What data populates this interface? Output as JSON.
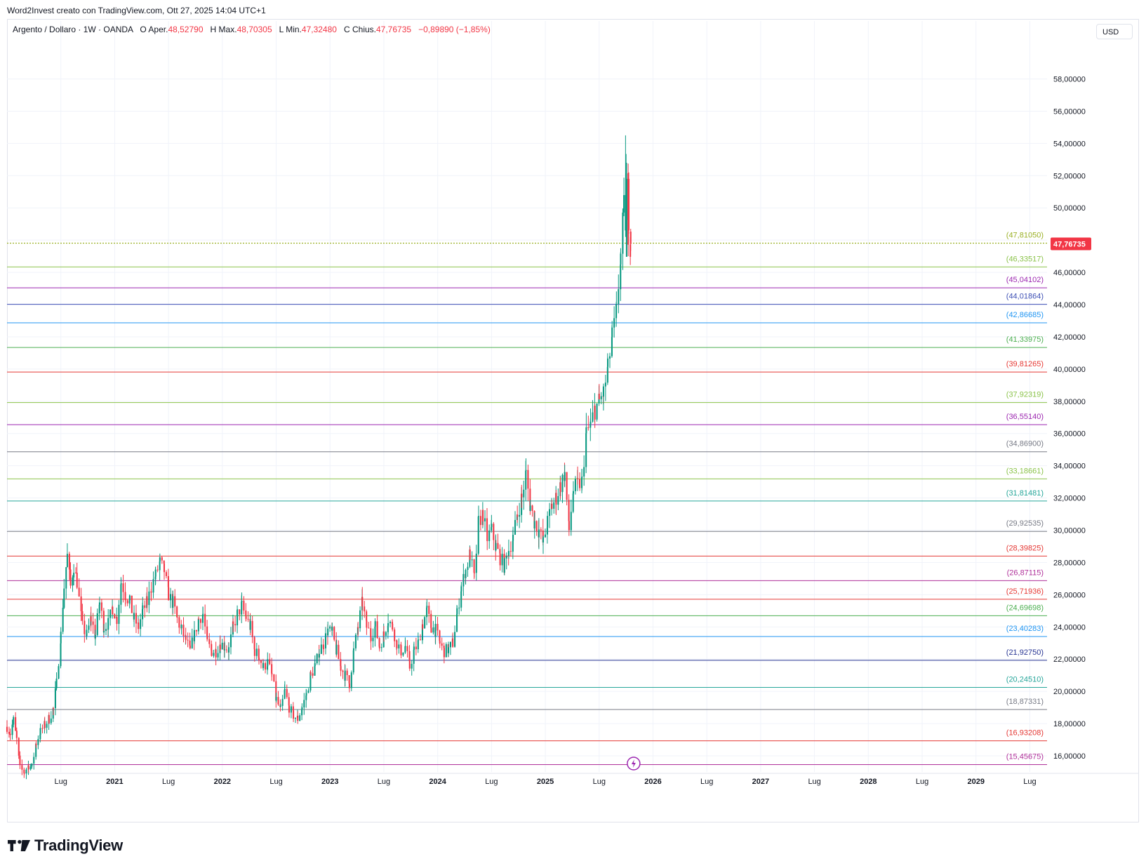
{
  "caption": "Word2Invest creato con TradingView.com, Ott 27, 2025 14:04 UTC+1",
  "legend": {
    "symbol": "Argento / Dollaro · 1W · OANDA",
    "o_label": "O",
    "o_key": "Aper.",
    "o_val": "48,52790",
    "h_label": "H",
    "h_key": "Max.",
    "h_val": "48,70305",
    "l_label": "L",
    "l_key": "Min.",
    "l_val": "47,32480",
    "c_label": "C",
    "c_key": "Chius.",
    "c_val": "47,76735",
    "change": "−0,89890 (−1,85%)"
  },
  "currency": "USD",
  "brand": "TradingView",
  "event_icon": "lightning-icon",
  "colors": {
    "up": "#089981",
    "down": "#f23645",
    "grid": "#f0f3fa",
    "price_tag": "#f23645"
  },
  "chart_data": {
    "type": "candlestick",
    "symbol": "XAGUSD",
    "timeframe": "1W",
    "ylim": [
      15.0,
      60.2
    ],
    "y_ticks": [
      {
        "value": 16,
        "label": "16,00000"
      },
      {
        "value": 18,
        "label": "18,00000"
      },
      {
        "value": 20,
        "label": "20,00000"
      },
      {
        "value": 22,
        "label": "22,00000"
      },
      {
        "value": 24,
        "label": "24,00000"
      },
      {
        "value": 26,
        "label": "26,00000"
      },
      {
        "value": 28,
        "label": "28,00000"
      },
      {
        "value": 30,
        "label": "30,00000"
      },
      {
        "value": 32,
        "label": "32,00000"
      },
      {
        "value": 34,
        "label": "34,00000"
      },
      {
        "value": 36,
        "label": "36,00000"
      },
      {
        "value": 38,
        "label": "38,00000"
      },
      {
        "value": 40,
        "label": "40,00000"
      },
      {
        "value": 42,
        "label": "42,00000"
      },
      {
        "value": 44,
        "label": "44,00000"
      },
      {
        "value": 46,
        "label": "46,00000"
      },
      {
        "value": 48,
        "label": "48,00000"
      },
      {
        "value": 50,
        "label": "50,00000"
      },
      {
        "value": 52,
        "label": "52,00000"
      },
      {
        "value": 54,
        "label": "54,00000"
      },
      {
        "value": 56,
        "label": "56,00000"
      },
      {
        "value": 58,
        "label": "58,00000"
      }
    ],
    "x_range": [
      2020.0,
      2029.66
    ],
    "x_ticks": [
      {
        "t": 2020.5,
        "label": "Lug"
      },
      {
        "t": 2021.0,
        "label": "2021"
      },
      {
        "t": 2021.5,
        "label": "Lug"
      },
      {
        "t": 2022.0,
        "label": "2022"
      },
      {
        "t": 2022.5,
        "label": "Lug"
      },
      {
        "t": 2023.0,
        "label": "2023"
      },
      {
        "t": 2023.5,
        "label": "Lug"
      },
      {
        "t": 2024.0,
        "label": "2024"
      },
      {
        "t": 2024.5,
        "label": "Lug"
      },
      {
        "t": 2025.0,
        "label": "2025"
      },
      {
        "t": 2025.5,
        "label": "Lug"
      },
      {
        "t": 2026.0,
        "label": "2026"
      },
      {
        "t": 2026.5,
        "label": "Lug"
      },
      {
        "t": 2027.0,
        "label": "2027"
      },
      {
        "t": 2027.5,
        "label": "Lug"
      },
      {
        "t": 2028.0,
        "label": "2028"
      },
      {
        "t": 2028.5,
        "label": "Lug"
      },
      {
        "t": 2029.0,
        "label": "2029"
      },
      {
        "t": 2029.5,
        "label": "Lug"
      }
    ],
    "last_price": {
      "value": 47.76735,
      "label": "47,76735"
    },
    "horizontal_levels": [
      {
        "value": 47.8105,
        "label": "(47,81050)",
        "color": "#9bb026",
        "style": "dotted"
      },
      {
        "value": 46.33517,
        "label": "(46,33517)",
        "color": "#8bc34a"
      },
      {
        "value": 45.04102,
        "label": "(45,04102)",
        "color": "#9c27b0"
      },
      {
        "value": 44.01864,
        "label": "(44,01864)",
        "color": "#3f51b5"
      },
      {
        "value": 42.86685,
        "label": "(42,86685)",
        "color": "#2196f3"
      },
      {
        "value": 41.33975,
        "label": "(41,33975)",
        "color": "#4caf50"
      },
      {
        "value": 39.81265,
        "label": "(39,81265)",
        "color": "#e53935"
      },
      {
        "value": 37.92319,
        "label": "(37,92319)",
        "color": "#8bc34a"
      },
      {
        "value": 36.5514,
        "label": "(36,55140)",
        "color": "#9c27b0"
      },
      {
        "value": 34.869,
        "label": "(34,86900)",
        "color": "#787b86"
      },
      {
        "value": 33.18661,
        "label": "(33,18661)",
        "color": "#8bc34a"
      },
      {
        "value": 31.81481,
        "label": "(31,81481)",
        "color": "#26a69a"
      },
      {
        "value": 29.92535,
        "label": "(29,92535)",
        "color": "#787b86"
      },
      {
        "value": 28.39825,
        "label": "(28,39825)",
        "color": "#e53935"
      },
      {
        "value": 26.87115,
        "label": "(26,87115)",
        "color": "#b0309a"
      },
      {
        "value": 25.71936,
        "label": "(25,71936)",
        "color": "#e53935"
      },
      {
        "value": 24.69698,
        "label": "(24,69698)",
        "color": "#4caf50"
      },
      {
        "value": 23.40283,
        "label": "(23,40283)",
        "color": "#2196f3"
      },
      {
        "value": 21.9275,
        "label": "(21,92750)",
        "color": "#283593"
      },
      {
        "value": 20.2451,
        "label": "(20,24510)",
        "color": "#26a69a"
      },
      {
        "value": 18.87331,
        "label": "(18,87331)",
        "color": "#787b86"
      },
      {
        "value": 16.93208,
        "label": "(16,93208)",
        "color": "#e53935"
      },
      {
        "value": 15.45675,
        "label": "(15,45675)",
        "color": "#b0309a"
      }
    ],
    "close_path_weekly": [
      [
        2020.0,
        17.8
      ],
      [
        2020.03,
        17.4
      ],
      [
        2020.06,
        18.2
      ],
      [
        2020.09,
        17.0
      ],
      [
        2020.12,
        15.2
      ],
      [
        2020.16,
        15.0
      ],
      [
        2020.2,
        15.4
      ],
      [
        2020.23,
        15.3
      ],
      [
        2020.27,
        16.8
      ],
      [
        2020.31,
        17.5
      ],
      [
        2020.35,
        17.9
      ],
      [
        2020.39,
        18.3
      ],
      [
        2020.43,
        18.9
      ],
      [
        2020.46,
        20.5
      ],
      [
        2020.5,
        23.5
      ],
      [
        2020.53,
        26.5
      ],
      [
        2020.56,
        28.4
      ],
      [
        2020.59,
        26.5
      ],
      [
        2020.62,
        27.8
      ],
      [
        2020.65,
        26.8
      ],
      [
        2020.7,
        24.0
      ],
      [
        2020.74,
        23.5
      ],
      [
        2020.78,
        24.5
      ],
      [
        2020.82,
        23.5
      ],
      [
        2020.86,
        25.5
      ],
      [
        2020.9,
        24.0
      ],
      [
        2020.94,
        24.2
      ],
      [
        2020.98,
        25.2
      ],
      [
        2021.02,
        24.5
      ],
      [
        2021.06,
        26.8
      ],
      [
        2021.1,
        26.0
      ],
      [
        2021.14,
        25.5
      ],
      [
        2021.18,
        24.5
      ],
      [
        2021.22,
        24.0
      ],
      [
        2021.26,
        25.0
      ],
      [
        2021.3,
        25.5
      ],
      [
        2021.34,
        26.5
      ],
      [
        2021.38,
        27.2
      ],
      [
        2021.42,
        28.0
      ],
      [
        2021.46,
        27.5
      ],
      [
        2021.5,
        26.0
      ],
      [
        2021.54,
        25.5
      ],
      [
        2021.58,
        24.5
      ],
      [
        2021.62,
        23.8
      ],
      [
        2021.66,
        23.2
      ],
      [
        2021.7,
        22.5
      ],
      [
        2021.74,
        23.5
      ],
      [
        2021.78,
        24.5
      ],
      [
        2021.82,
        24.8
      ],
      [
        2021.86,
        23.0
      ],
      [
        2021.9,
        22.5
      ],
      [
        2021.94,
        22.5
      ],
      [
        2021.98,
        23.0
      ],
      [
        2022.02,
        22.8
      ],
      [
        2022.06,
        22.6
      ],
      [
        2022.1,
        24.0
      ],
      [
        2022.14,
        24.8
      ],
      [
        2022.18,
        25.3
      ],
      [
        2022.22,
        24.6
      ],
      [
        2022.26,
        24.0
      ],
      [
        2022.3,
        22.5
      ],
      [
        2022.34,
        22.2
      ],
      [
        2022.38,
        21.5
      ],
      [
        2022.42,
        21.8
      ],
      [
        2022.46,
        21.0
      ],
      [
        2022.5,
        19.5
      ],
      [
        2022.54,
        18.8
      ],
      [
        2022.58,
        20.0
      ],
      [
        2022.62,
        19.0
      ],
      [
        2022.66,
        18.5
      ],
      [
        2022.7,
        18.3
      ],
      [
        2022.74,
        19.0
      ],
      [
        2022.78,
        19.8
      ],
      [
        2022.82,
        21.0
      ],
      [
        2022.86,
        21.5
      ],
      [
        2022.9,
        22.5
      ],
      [
        2022.94,
        23.0
      ],
      [
        2022.98,
        23.8
      ],
      [
        2023.02,
        23.6
      ],
      [
        2023.06,
        22.5
      ],
      [
        2023.1,
        21.5
      ],
      [
        2023.14,
        21.0
      ],
      [
        2023.18,
        20.5
      ],
      [
        2023.22,
        22.5
      ],
      [
        2023.26,
        24.0
      ],
      [
        2023.3,
        25.5
      ],
      [
        2023.34,
        24.0
      ],
      [
        2023.38,
        23.5
      ],
      [
        2023.42,
        24.0
      ],
      [
        2023.46,
        22.8
      ],
      [
        2023.5,
        23.5
      ],
      [
        2023.54,
        24.5
      ],
      [
        2023.58,
        24.0
      ],
      [
        2023.62,
        23.0
      ],
      [
        2023.66,
        22.5
      ],
      [
        2023.7,
        22.8
      ],
      [
        2023.74,
        21.5
      ],
      [
        2023.78,
        22.5
      ],
      [
        2023.82,
        23.0
      ],
      [
        2023.86,
        24.2
      ],
      [
        2023.9,
        25.0
      ],
      [
        2023.94,
        24.0
      ],
      [
        2023.98,
        23.8
      ],
      [
        2024.02,
        23.0
      ],
      [
        2024.06,
        22.5
      ],
      [
        2024.1,
        22.6
      ],
      [
        2024.14,
        23.0
      ],
      [
        2024.18,
        24.8
      ],
      [
        2024.22,
        26.5
      ],
      [
        2024.26,
        27.5
      ],
      [
        2024.3,
        28.5
      ],
      [
        2024.34,
        27.0
      ],
      [
        2024.38,
        30.5
      ],
      [
        2024.42,
        31.0
      ],
      [
        2024.46,
        29.5
      ],
      [
        2024.5,
        30.0
      ],
      [
        2024.54,
        29.0
      ],
      [
        2024.58,
        28.3
      ],
      [
        2024.62,
        27.8
      ],
      [
        2024.66,
        28.8
      ],
      [
        2024.7,
        29.5
      ],
      [
        2024.74,
        31.0
      ],
      [
        2024.78,
        32.0
      ],
      [
        2024.82,
        33.5
      ],
      [
        2024.86,
        31.5
      ],
      [
        2024.9,
        30.5
      ],
      [
        2024.94,
        30.0
      ],
      [
        2024.98,
        29.2
      ],
      [
        2025.02,
        30.5
      ],
      [
        2025.06,
        31.5
      ],
      [
        2025.1,
        32.0
      ],
      [
        2025.14,
        32.8
      ],
      [
        2025.18,
        33.5
      ],
      [
        2025.22,
        30.0
      ],
      [
        2025.26,
        32.5
      ],
      [
        2025.3,
        32.8
      ],
      [
        2025.34,
        33.0
      ],
      [
        2025.38,
        36.0
      ],
      [
        2025.42,
        36.5
      ],
      [
        2025.46,
        37.5
      ],
      [
        2025.5,
        38.0
      ],
      [
        2025.54,
        38.5
      ],
      [
        2025.58,
        40.0
      ],
      [
        2025.62,
        42.0
      ],
      [
        2025.66,
        43.5
      ],
      [
        2025.7,
        47.0
      ],
      [
        2025.73,
        50.0
      ],
      [
        2025.75,
        51.8
      ],
      [
        2025.77,
        48.5
      ],
      [
        2025.79,
        47.77
      ]
    ],
    "notable_points": {
      "all_time_high_week_high": 54.5,
      "recent_week_open": 48.5279,
      "recent_week_high": 48.70305,
      "recent_week_low": 47.3248,
      "recent_week_close": 47.76735
    }
  }
}
